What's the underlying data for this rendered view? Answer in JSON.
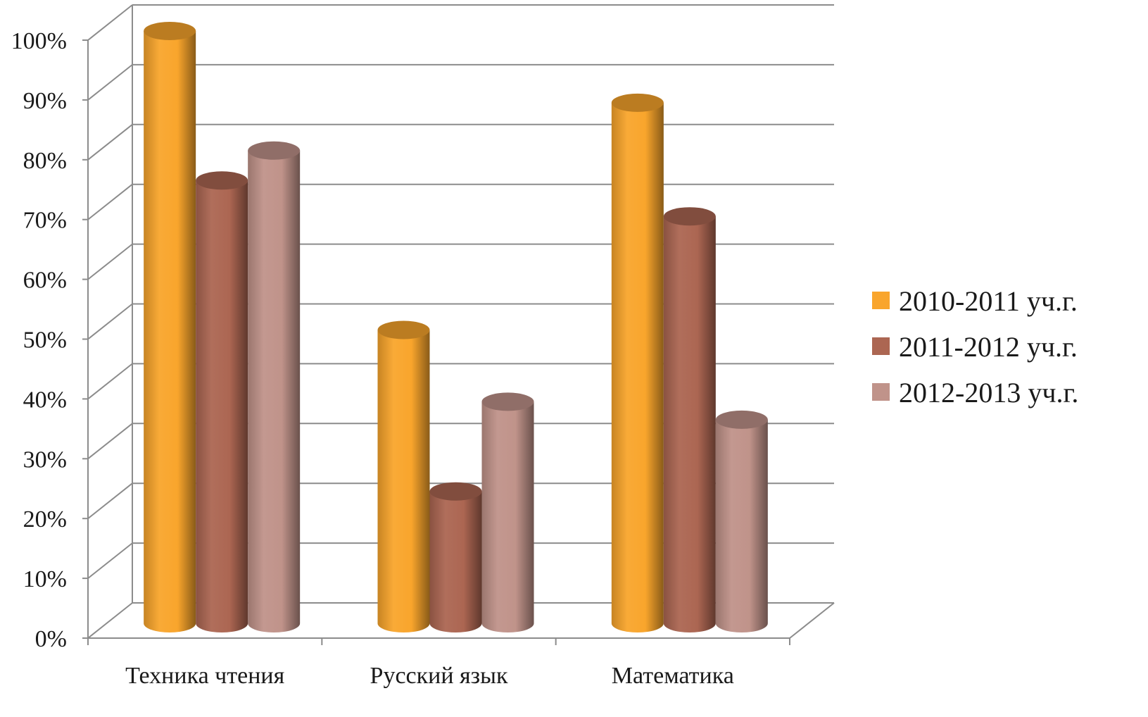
{
  "chart_data": {
    "type": "bar",
    "style": "3d-cylinder",
    "categories": [
      "Техника чтения",
      "Русский язык",
      "Математика"
    ],
    "series": [
      {
        "name": "2010-2011 уч.г.",
        "color": "#F9A52C",
        "values": [
          100,
          50,
          88
        ]
      },
      {
        "name": "2011-2012 уч.г.",
        "color": "#AC6652",
        "values": [
          75,
          23,
          69
        ]
      },
      {
        "name": "2012-2013 уч.г.",
        "color": "#C0938A",
        "values": [
          80,
          38,
          35
        ]
      }
    ],
    "ylim": [
      0,
      100
    ],
    "yticks": [
      "0%",
      "10%",
      "20%",
      "30%",
      "40%",
      "50%",
      "60%",
      "70%",
      "80%",
      "90%",
      "100%"
    ],
    "grid": true,
    "legend_position": "right"
  }
}
